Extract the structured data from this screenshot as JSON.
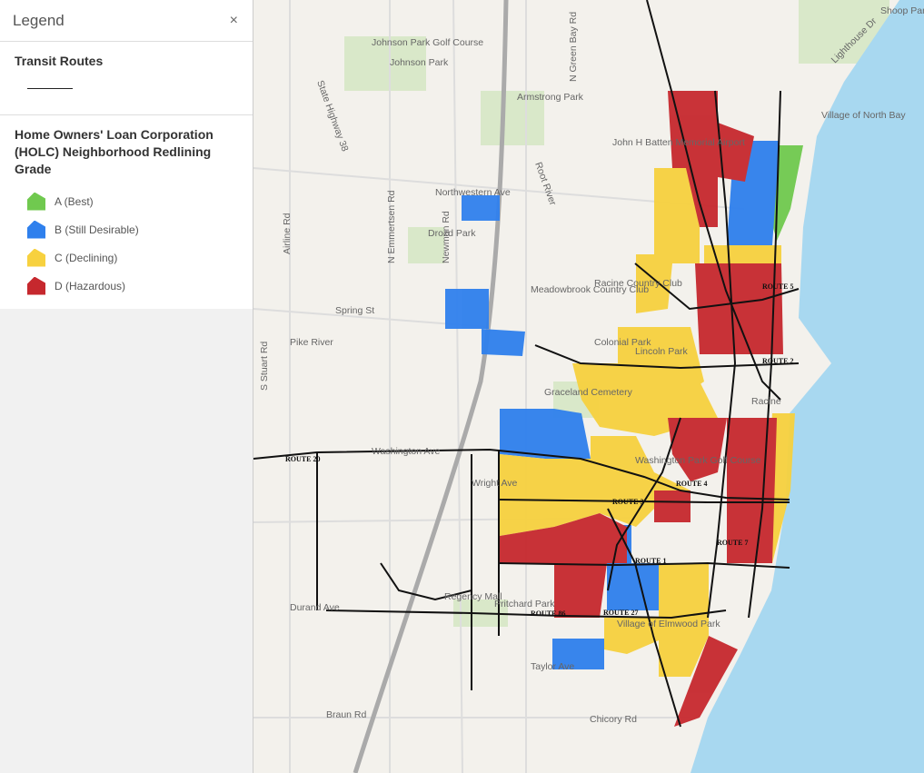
{
  "legend": {
    "title": "Legend",
    "close": "×",
    "layers": [
      {
        "title": "Transit Routes"
      },
      {
        "title": "Home Owners' Loan Corporation (HOLC) Neighborhood Redlining Grade",
        "items": [
          {
            "label": "A (Best)",
            "color": "#70c94f"
          },
          {
            "label": "B (Still Desirable)",
            "color": "#2f80ed"
          },
          {
            "label": "C (Declining)",
            "color": "#f7d13f"
          },
          {
            "label": "D (Hazardous)",
            "color": "#c6282e"
          }
        ]
      }
    ]
  },
  "map": {
    "labels": [
      "Johnson Park Golf Course",
      "Johnson Park",
      "Armstrong Park",
      "John H Batten Memorial Airport",
      "Village of North Bay",
      "Shoop Park Golf Course",
      "Northwestern Ave",
      "Drozd Park",
      "Meadowbrook Country Club",
      "Racine Country Club",
      "Spring St",
      "Pike River",
      "Colonial Park",
      "Lincoln Park",
      "Graceland Cemetery",
      "Racine",
      "Washington Ave",
      "Washington Park Golf Course",
      "Wright Ave",
      "Durand Ave",
      "Regency Mall",
      "Pritchard Park",
      "Village of Elmwood Park",
      "Taylor Ave",
      "Braun Rd",
      "Chicory Rd",
      "State Highway 38",
      "Airline Rd",
      "N Emmertsen Rd",
      "Newman Rd",
      "S Stuart Rd",
      "N Green Bay Rd",
      "Root River",
      "Lighthouse Dr",
      "ROUTE 1",
      "ROUTE 2",
      "ROUTE 3",
      "ROUTE 4",
      "ROUTE 5",
      "ROUTE 7",
      "ROUTE 20",
      "ROUTE 27",
      "ROUTE 86"
    ]
  }
}
